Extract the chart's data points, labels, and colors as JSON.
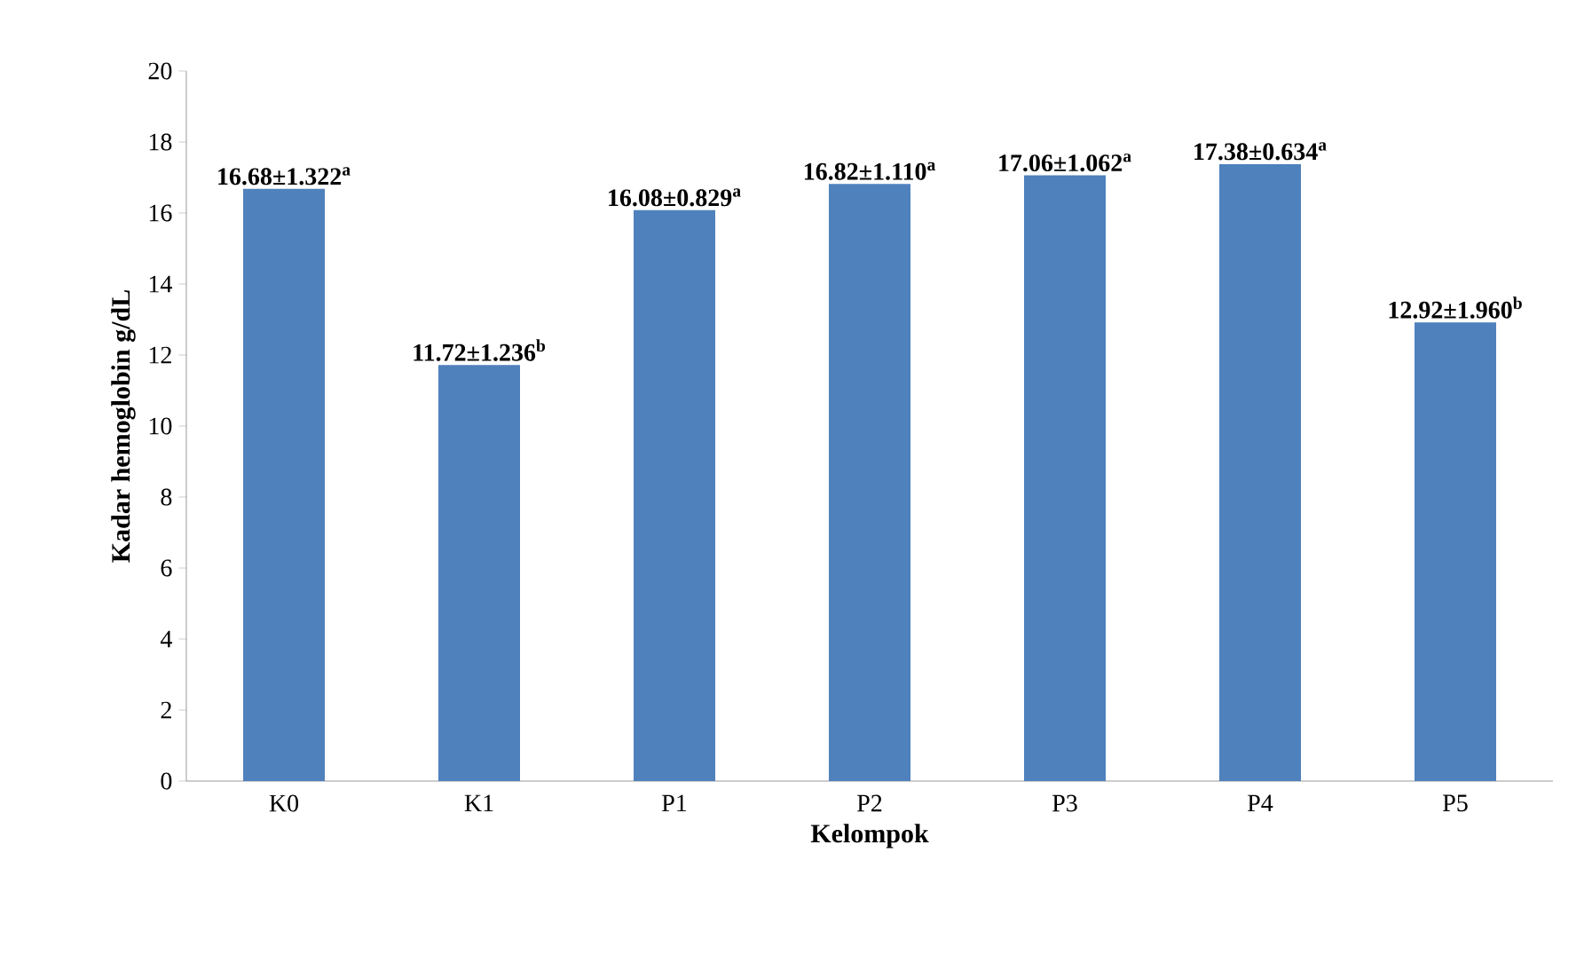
{
  "chart_data": {
    "type": "bar",
    "xlabel": "Kelompok",
    "ylabel": "Kadar hemoglobin g/dL",
    "categories": [
      "K0",
      "K1",
      "P1",
      "P2",
      "P3",
      "P4",
      "P5"
    ],
    "values": [
      16.68,
      11.72,
      16.08,
      16.82,
      17.06,
      17.38,
      12.92
    ],
    "value_labels": [
      "16.68±1.322$^{a}$",
      "11.72±1.236$^{b}$",
      "16.08±0.829$^{a}$",
      "16.82±1.110$^{a}$",
      "17.06±1.062$^{a}$",
      "17.38±0.634$^{a}$",
      "12.92±1.960$^{b}$"
    ],
    "color": "#4f81bd",
    "ylim": [
      0,
      20
    ],
    "yticks": [
      0,
      2,
      4,
      6,
      8,
      10,
      12,
      14,
      16,
      18,
      20
    ],
    "grid": false
  }
}
